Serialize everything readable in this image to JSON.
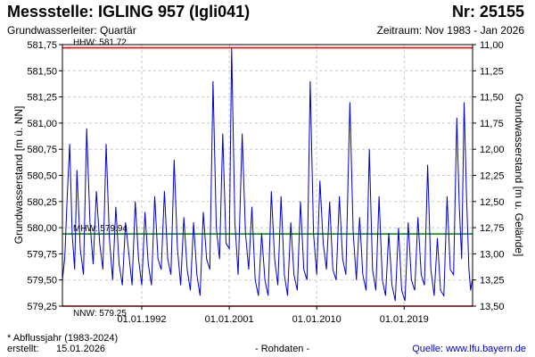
{
  "header": {
    "title": "Messstelle: IGLING 957 (Igli041)",
    "number": "Nr: 25155",
    "aquifer": "Grundwasserleiter: Quartär",
    "period": "Zeitraum: Nov 1983 - Jan 2026"
  },
  "footer": {
    "footnote": "* Abflussjahr (1983-2024)",
    "created_label": "erstellt:",
    "created_date": "15.01.2026",
    "raw_data": "- Rohdaten -",
    "source": "Quelle: www.lfu.bayern.de"
  },
  "colors": {
    "series": "#0000cc",
    "extreme_lines": "#ff0000",
    "mean_line": "#008000",
    "grid": "#c8c8c8"
  },
  "chart_data": {
    "type": "line",
    "ylabel_left": "Grundwasserstand [m ü. NN]",
    "ylabel_right": "Grundwasserstand [m u. Gelände]",
    "xlim": [
      "1983-11-01",
      "2026-01-15"
    ],
    "ylim": [
      579.25,
      581.75
    ],
    "ylim_right": [
      13.5,
      11.0
    ],
    "y_ticks": [
      "581,75",
      "581,50",
      "581,25",
      "581,00",
      "580,75",
      "580,50",
      "580,25",
      "580,00",
      "579,75",
      "579,50",
      "579,25"
    ],
    "y_ticks_right": [
      "11,00",
      "11,25",
      "11,50",
      "11,75",
      "12,00",
      "12,25",
      "12,50",
      "12,75",
      "13,00",
      "13,25",
      "13,50"
    ],
    "x_ticks": [
      {
        "date": "1992-01-01",
        "label": "01.01.1992"
      },
      {
        "date": "2001-01-01",
        "label": "01.01.2001"
      },
      {
        "date": "2010-01-01",
        "label": "01.01.2010"
      },
      {
        "date": "2019-01-01",
        "label": "01.01.2019"
      }
    ],
    "grid": true,
    "reference_lines": [
      {
        "label": "HHW: 581.72",
        "value": 581.72,
        "kind": "max"
      },
      {
        "label": "MHW: 579.94",
        "value": 579.94,
        "kind": "mean"
      },
      {
        "label": "NNW: 579.25",
        "value": 579.25,
        "kind": "min"
      }
    ],
    "series": [
      {
        "points": [
          [
            "1983-11",
            579.5
          ],
          [
            "1984-02",
            579.72
          ],
          [
            "1984-05",
            580.3
          ],
          [
            "1984-08",
            580.8
          ],
          [
            "1984-11",
            579.95
          ],
          [
            "1985-02",
            579.6
          ],
          [
            "1985-05",
            580.55
          ],
          [
            "1985-09",
            579.8
          ],
          [
            "1986-01",
            579.55
          ],
          [
            "1986-05",
            580.95
          ],
          [
            "1986-09",
            580.05
          ],
          [
            "1987-01",
            579.65
          ],
          [
            "1987-05",
            580.35
          ],
          [
            "1987-09",
            579.85
          ],
          [
            "1988-01",
            579.6
          ],
          [
            "1988-05",
            580.8
          ],
          [
            "1988-09",
            579.9
          ],
          [
            "1989-01",
            579.5
          ],
          [
            "1989-05",
            580.2
          ],
          [
            "1989-09",
            579.65
          ],
          [
            "1990-01",
            579.45
          ],
          [
            "1990-05",
            580.05
          ],
          [
            "1990-09",
            579.75
          ],
          [
            "1991-01",
            579.45
          ],
          [
            "1991-05",
            580.25
          ],
          [
            "1991-09",
            579.7
          ],
          [
            "1992-01",
            579.45
          ],
          [
            "1992-05",
            580.15
          ],
          [
            "1992-09",
            579.65
          ],
          [
            "1993-01",
            579.45
          ],
          [
            "1993-05",
            580.3
          ],
          [
            "1993-09",
            579.7
          ],
          [
            "1994-01",
            579.6
          ],
          [
            "1994-05",
            580.35
          ],
          [
            "1994-09",
            579.7
          ],
          [
            "1995-01",
            579.55
          ],
          [
            "1995-05",
            580.65
          ],
          [
            "1995-09",
            579.8
          ],
          [
            "1996-01",
            579.45
          ],
          [
            "1996-05",
            580.1
          ],
          [
            "1996-09",
            579.6
          ],
          [
            "1997-01",
            579.4
          ],
          [
            "1997-05",
            580.05
          ],
          [
            "1997-09",
            579.55
          ],
          [
            "1998-01",
            579.35
          ],
          [
            "1998-05",
            580.15
          ],
          [
            "1998-09",
            579.7
          ],
          [
            "1999-01",
            579.6
          ],
          [
            "1999-05",
            581.4
          ],
          [
            "1999-09",
            580.0
          ],
          [
            "2000-01",
            579.7
          ],
          [
            "2000-05",
            580.9
          ],
          [
            "2000-09",
            579.85
          ],
          [
            "2001-01",
            579.8
          ],
          [
            "2001-04",
            581.72
          ],
          [
            "2001-08",
            580.05
          ],
          [
            "2001-12",
            579.55
          ],
          [
            "2002-05",
            580.9
          ],
          [
            "2002-09",
            579.95
          ],
          [
            "2003-01",
            579.6
          ],
          [
            "2003-05",
            580.2
          ],
          [
            "2003-09",
            579.5
          ],
          [
            "2004-01",
            579.35
          ],
          [
            "2004-05",
            579.95
          ],
          [
            "2004-09",
            579.5
          ],
          [
            "2005-01",
            579.35
          ],
          [
            "2005-05",
            580.35
          ],
          [
            "2005-09",
            579.7
          ],
          [
            "2006-01",
            579.45
          ],
          [
            "2006-05",
            580.3
          ],
          [
            "2006-09",
            579.55
          ],
          [
            "2007-01",
            579.35
          ],
          [
            "2007-05",
            580.05
          ],
          [
            "2007-09",
            579.55
          ],
          [
            "2008-01",
            579.4
          ],
          [
            "2008-05",
            580.25
          ],
          [
            "2008-09",
            579.6
          ],
          [
            "2009-01",
            579.5
          ],
          [
            "2009-05",
            581.4
          ],
          [
            "2009-09",
            579.95
          ],
          [
            "2010-01",
            579.55
          ],
          [
            "2010-05",
            580.45
          ],
          [
            "2010-09",
            579.85
          ],
          [
            "2011-01",
            579.6
          ],
          [
            "2011-05",
            580.25
          ],
          [
            "2011-09",
            579.6
          ],
          [
            "2012-01",
            579.5
          ],
          [
            "2012-05",
            580.3
          ],
          [
            "2012-09",
            579.7
          ],
          [
            "2013-01",
            579.55
          ],
          [
            "2013-06",
            581.2
          ],
          [
            "2013-10",
            579.95
          ],
          [
            "2014-02",
            579.5
          ],
          [
            "2014-06",
            580.1
          ],
          [
            "2014-10",
            579.55
          ],
          [
            "2015-02",
            579.4
          ],
          [
            "2015-06",
            580.75
          ],
          [
            "2015-10",
            579.6
          ],
          [
            "2016-02",
            579.4
          ],
          [
            "2016-06",
            580.3
          ],
          [
            "2016-10",
            579.5
          ],
          [
            "2017-02",
            579.35
          ],
          [
            "2017-06",
            579.95
          ],
          [
            "2017-10",
            579.45
          ],
          [
            "2018-02",
            579.3
          ],
          [
            "2018-06",
            580.0
          ],
          [
            "2018-10",
            579.4
          ],
          [
            "2019-02",
            579.3
          ],
          [
            "2019-06",
            580.05
          ],
          [
            "2019-10",
            579.5
          ],
          [
            "2020-02",
            579.4
          ],
          [
            "2020-06",
            580.1
          ],
          [
            "2020-10",
            579.55
          ],
          [
            "2021-02",
            579.45
          ],
          [
            "2021-06",
            580.6
          ],
          [
            "2021-10",
            579.6
          ],
          [
            "2022-02",
            579.35
          ],
          [
            "2022-06",
            579.9
          ],
          [
            "2022-10",
            579.4
          ],
          [
            "2023-02",
            579.35
          ],
          [
            "2023-06",
            580.3
          ],
          [
            "2023-10",
            579.6
          ],
          [
            "2024-02",
            579.55
          ],
          [
            "2024-06",
            581.05
          ],
          [
            "2024-09",
            580.2
          ],
          [
            "2024-12",
            579.7
          ],
          [
            "2025-03",
            581.2
          ],
          [
            "2025-06",
            580.3
          ],
          [
            "2025-09",
            579.6
          ],
          [
            "2025-11",
            579.4
          ],
          [
            "2026-01",
            579.5
          ]
        ]
      }
    ]
  }
}
